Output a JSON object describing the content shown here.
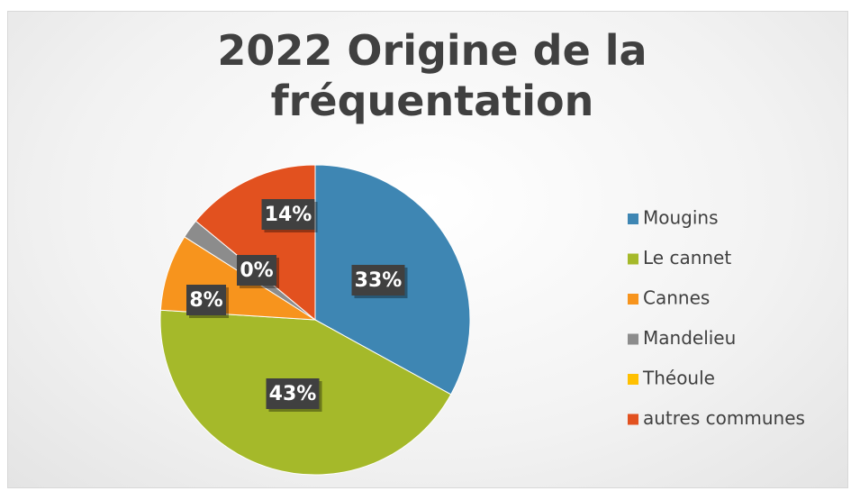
{
  "chart_data": {
    "type": "pie",
    "title": "2022 Origine de la fréquentation",
    "categories": [
      "Mougins",
      "Le cannet",
      "Cannes",
      "Mandelieu",
      "Théoule",
      "autres communes"
    ],
    "values": [
      33,
      43,
      8,
      2,
      0,
      14
    ],
    "value_labels": [
      "33%",
      "43%",
      "8%",
      null,
      "0%",
      "14%"
    ],
    "colors": [
      "#3e86b3",
      "#a5b92a",
      "#f7941d",
      "#8c8c8c",
      "#ffc000",
      "#e2511f"
    ],
    "legend": "right"
  }
}
